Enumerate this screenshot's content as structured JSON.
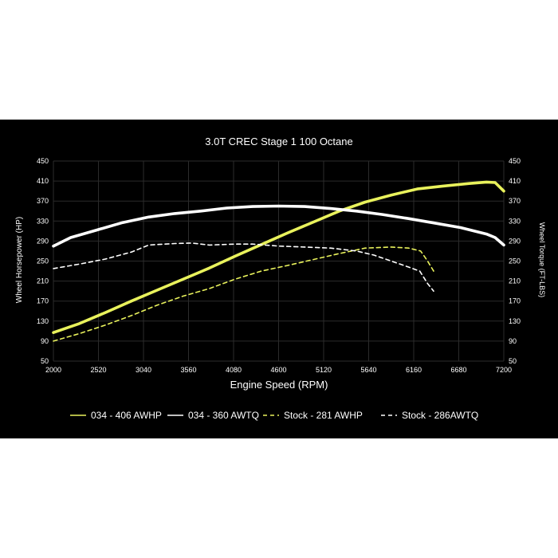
{
  "chart_data": {
    "type": "line",
    "title": "3.0T CREC Stage 1 100 Octane",
    "xlabel": "Engine Speed (RPM)",
    "ylabel_left": "Wheel Horsepower (HP)",
    "ylabel_right": "Wheel Torque (FT-LBS)",
    "xlim": [
      2000,
      7200
    ],
    "ylim": [
      50,
      450
    ],
    "x_ticks": [
      2000,
      2520,
      3040,
      3560,
      4080,
      4600,
      5120,
      5640,
      6160,
      6680,
      7200
    ],
    "y_ticks": [
      50,
      90,
      130,
      170,
      210,
      250,
      290,
      330,
      370,
      410,
      450
    ],
    "grid": true,
    "legend_position": "bottom",
    "series": [
      {
        "name": "034 - 406 AWHP",
        "color": "#e9f25c",
        "style": "solid",
        "points": [
          [
            2000,
            107
          ],
          [
            2300,
            125
          ],
          [
            2600,
            147
          ],
          [
            2900,
            170
          ],
          [
            3200,
            192
          ],
          [
            3500,
            214
          ],
          [
            3800,
            236
          ],
          [
            4100,
            260
          ],
          [
            4400,
            283
          ],
          [
            4700,
            306
          ],
          [
            5000,
            328
          ],
          [
            5300,
            350
          ],
          [
            5600,
            368
          ],
          [
            5900,
            382
          ],
          [
            6200,
            394
          ],
          [
            6500,
            400
          ],
          [
            6800,
            405
          ],
          [
            7000,
            408
          ],
          [
            7100,
            407
          ],
          [
            7200,
            390
          ]
        ]
      },
      {
        "name": "034 - 360 AWTQ",
        "color": "#ffffff",
        "style": "solid",
        "points": [
          [
            2000,
            280
          ],
          [
            2200,
            297
          ],
          [
            2500,
            312
          ],
          [
            2800,
            327
          ],
          [
            3100,
            338
          ],
          [
            3400,
            345
          ],
          [
            3700,
            350
          ],
          [
            4000,
            356
          ],
          [
            4300,
            359
          ],
          [
            4600,
            360
          ],
          [
            4900,
            359
          ],
          [
            5200,
            355
          ],
          [
            5500,
            350
          ],
          [
            5800,
            343
          ],
          [
            6100,
            335
          ],
          [
            6400,
            326
          ],
          [
            6700,
            317
          ],
          [
            7000,
            304
          ],
          [
            7100,
            297
          ],
          [
            7200,
            282
          ]
        ]
      },
      {
        "name": "Stock - 281 AWHP",
        "color": "#e9f25c",
        "style": "dashed",
        "points": [
          [
            2000,
            90
          ],
          [
            2300,
            105
          ],
          [
            2600,
            122
          ],
          [
            2900,
            141
          ],
          [
            3200,
            162
          ],
          [
            3500,
            180
          ],
          [
            3800,
            195
          ],
          [
            4100,
            214
          ],
          [
            4400,
            230
          ],
          [
            4700,
            241
          ],
          [
            5000,
            253
          ],
          [
            5300,
            265
          ],
          [
            5600,
            276
          ],
          [
            5900,
            278
          ],
          [
            6100,
            276
          ],
          [
            6240,
            270
          ],
          [
            6320,
            250
          ],
          [
            6390,
            230
          ]
        ]
      },
      {
        "name": "Stock - 286AWTQ",
        "color": "#ffffff",
        "style": "dashed",
        "points": [
          [
            2000,
            235
          ],
          [
            2300,
            244
          ],
          [
            2600,
            254
          ],
          [
            2900,
            268
          ],
          [
            3100,
            282
          ],
          [
            3400,
            285
          ],
          [
            3600,
            286
          ],
          [
            3800,
            282
          ],
          [
            4100,
            284
          ],
          [
            4300,
            284
          ],
          [
            4600,
            280
          ],
          [
            4900,
            278
          ],
          [
            5200,
            276
          ],
          [
            5500,
            270
          ],
          [
            5700,
            262
          ],
          [
            5900,
            250
          ],
          [
            6100,
            238
          ],
          [
            6230,
            230
          ],
          [
            6320,
            205
          ],
          [
            6390,
            190
          ]
        ]
      }
    ]
  }
}
